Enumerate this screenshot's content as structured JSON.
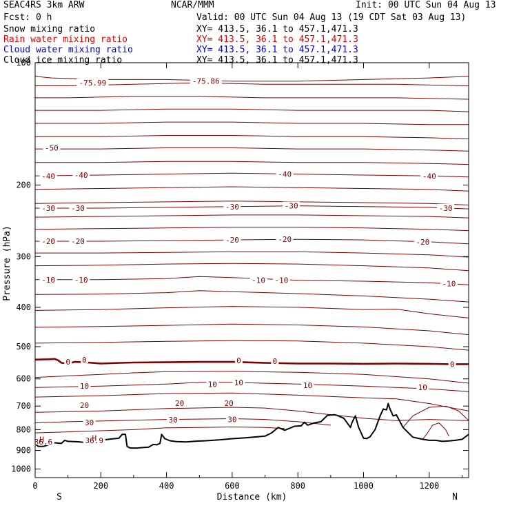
{
  "header": {
    "model": "SEAC4RS  3km ARW",
    "org": "NCAR/MMM",
    "init": "Init: 00 UTC Sun 04 Aug 13",
    "fcst": "Fcst:   0 h",
    "valid": "Valid: 00 UTC Sun 04 Aug 13 (19 CDT Sat 03 Aug 13)"
  },
  "fields": [
    {
      "label": "Snow mixing ratio",
      "xy": "XY= 413.5, 36.1 to 457.1,471.3",
      "color": "#000000"
    },
    {
      "label": "Rain water mixing ratio",
      "xy": "XY= 413.5, 36.1 to 457.1,471.3",
      "color": "#e00000"
    },
    {
      "label": "Cloud water mixing ratio",
      "xy": "XY= 413.5, 36.1 to 457.1,471.3",
      "color": "#0000dd"
    },
    {
      "label": "Cloud ice mixing ratio",
      "xy": "XY= 413.5, 36.1 to 457.1,471.3",
      "color": "#000000"
    }
  ],
  "chart_data": {
    "type": "line",
    "xlabel": "Distance (km)",
    "ylabel": "Pressure (hPa)",
    "xlim": [
      0,
      1320
    ],
    "ylim": [
      100,
      1050
    ],
    "y_scale": "log",
    "x_ticks": [
      0,
      200,
      400,
      600,
      800,
      1000,
      1200
    ],
    "y_ticks": [
      200,
      300,
      400,
      500,
      600,
      700,
      800,
      900,
      1000
    ],
    "y_top_tick_label": "100",
    "left_end_label": "S",
    "right_end_label": "N",
    "contour_color": "#800000",
    "terrain_color": "#000000",
    "contour_labels": [
      {
        "text": "-75.99",
        "x": 175,
        "p": 112
      },
      {
        "text": "-75.86",
        "x": 520,
        "p": 111
      },
      {
        "text": "-50",
        "x": 50,
        "p": 162
      },
      {
        "text": "-40",
        "x": 40,
        "p": 190
      },
      {
        "text": "-40",
        "x": 140,
        "p": 189
      },
      {
        "text": "-40",
        "x": 760,
        "p": 188
      },
      {
        "text": "-40",
        "x": 1200,
        "p": 190
      },
      {
        "text": "-30",
        "x": 40,
        "p": 228
      },
      {
        "text": "-30",
        "x": 130,
        "p": 228
      },
      {
        "text": "-30",
        "x": 600,
        "p": 226
      },
      {
        "text": "-30",
        "x": 780,
        "p": 225
      },
      {
        "text": "-30",
        "x": 1250,
        "p": 228
      },
      {
        "text": "-20",
        "x": 40,
        "p": 275
      },
      {
        "text": "-20",
        "x": 130,
        "p": 275
      },
      {
        "text": "-20",
        "x": 600,
        "p": 273
      },
      {
        "text": "-20",
        "x": 760,
        "p": 272
      },
      {
        "text": "-20",
        "x": 1180,
        "p": 276
      },
      {
        "text": "-10",
        "x": 40,
        "p": 342
      },
      {
        "text": "-10",
        "x": 140,
        "p": 342
      },
      {
        "text": "-10",
        "x": 680,
        "p": 343
      },
      {
        "text": "-10",
        "x": 750,
        "p": 343
      },
      {
        "text": "-10",
        "x": 1260,
        "p": 350
      },
      {
        "text": "0",
        "x": 100,
        "p": 545
      },
      {
        "text": "0",
        "x": 150,
        "p": 538
      },
      {
        "text": "0",
        "x": 620,
        "p": 540
      },
      {
        "text": "0",
        "x": 730,
        "p": 543
      },
      {
        "text": "0",
        "x": 1270,
        "p": 552
      },
      {
        "text": "10",
        "x": 150,
        "p": 625
      },
      {
        "text": "10",
        "x": 540,
        "p": 618
      },
      {
        "text": "10",
        "x": 620,
        "p": 613
      },
      {
        "text": "10",
        "x": 830,
        "p": 622
      },
      {
        "text": "10",
        "x": 1180,
        "p": 630
      },
      {
        "text": "20",
        "x": 150,
        "p": 697
      },
      {
        "text": "20",
        "x": 440,
        "p": 688
      },
      {
        "text": "20",
        "x": 590,
        "p": 688
      },
      {
        "text": "30",
        "x": 165,
        "p": 768
      },
      {
        "text": "30",
        "x": 420,
        "p": 757
      },
      {
        "text": "30",
        "x": 600,
        "p": 755
      },
      {
        "text": "36.6",
        "x": 25,
        "p": 857
      },
      {
        "text": "36.9",
        "x": 180,
        "p": 851
      }
    ],
    "extrema_labels": [
      {
        "text": "H",
        "x": 20,
        "p": 846
      },
      {
        "text": "H",
        "x": 180,
        "p": 839
      }
    ],
    "series": [
      {
        "name": "",
        "kind": "isotherm",
        "x": [
          0,
          50,
          200,
          400,
          600,
          800,
          1000,
          1200,
          1320
        ],
        "p": [
          108,
          109,
          110,
          110,
          111,
          111,
          110,
          109,
          108
        ]
      },
      {
        "name": "",
        "kind": "isotherm",
        "x": [
          0,
          100,
          300,
          500,
          700,
          900,
          1100,
          1320
        ],
        "p": [
          114,
          114,
          113,
          112,
          113,
          113,
          113,
          114
        ]
      },
      {
        "name": "",
        "kind": "isotherm",
        "x": [
          0,
          100,
          300,
          500,
          700,
          900,
          1100,
          1320
        ],
        "p": [
          122,
          122,
          121,
          121,
          122,
          122,
          122,
          123
        ]
      },
      {
        "name": "",
        "kind": "isotherm",
        "x": [
          0,
          200,
          400,
          600,
          800,
          1000,
          1200,
          1320
        ],
        "p": [
          131,
          131,
          130,
          130,
          131,
          131,
          131,
          132
        ]
      },
      {
        "name": "",
        "kind": "isotherm",
        "x": [
          0,
          200,
          400,
          600,
          800,
          1000,
          1200,
          1320
        ],
        "p": [
          141,
          141,
          140,
          140,
          141,
          141,
          142,
          142
        ]
      },
      {
        "name": "",
        "kind": "isotherm",
        "x": [
          0,
          200,
          400,
          600,
          800,
          1000,
          1200,
          1320
        ],
        "p": [
          152,
          152,
          151,
          151,
          152,
          152,
          153,
          154
        ]
      },
      {
        "name": "",
        "kind": "isotherm",
        "x": [
          0,
          200,
          400,
          600,
          800,
          1000,
          1200,
          1320
        ],
        "p": [
          163,
          163,
          162,
          162,
          163,
          163,
          164,
          165
        ]
      },
      {
        "name": "",
        "kind": "isotherm",
        "x": [
          0,
          200,
          400,
          600,
          800,
          1000,
          1200,
          1320
        ],
        "p": [
          176,
          176,
          175,
          175,
          176,
          176,
          177,
          178
        ]
      },
      {
        "name": "",
        "kind": "isotherm",
        "x": [
          0,
          200,
          400,
          600,
          800,
          1000,
          1200,
          1320
        ],
        "p": [
          190,
          189,
          188,
          187,
          188,
          189,
          190,
          191
        ]
      },
      {
        "name": "",
        "kind": "isotherm",
        "x": [
          0,
          200,
          400,
          600,
          800,
          1000,
          1200,
          1320
        ],
        "p": [
          205,
          204,
          203,
          202,
          203,
          204,
          205,
          207
        ]
      },
      {
        "name": "",
        "kind": "isotherm",
        "x": [
          0,
          200,
          400,
          600,
          800,
          1000,
          1200,
          1320
        ],
        "p": [
          222,
          221,
          220,
          219,
          220,
          221,
          222,
          224
        ]
      },
      {
        "name": "",
        "kind": "isotherm",
        "x": [
          0,
          200,
          400,
          600,
          800,
          1000,
          1200,
          1320
        ],
        "p": [
          228,
          228,
          227,
          226,
          225,
          226,
          227,
          229
        ]
      },
      {
        "name": "",
        "kind": "isotherm",
        "x": [
          0,
          200,
          400,
          600,
          800,
          1000,
          1200,
          1320
        ],
        "p": [
          240,
          239,
          238,
          237,
          237,
          238,
          239,
          241
        ]
      },
      {
        "name": "",
        "kind": "isotherm",
        "x": [
          0,
          200,
          400,
          600,
          800,
          1000,
          1200,
          1320
        ],
        "p": [
          257,
          256,
          255,
          254,
          254,
          255,
          257,
          259
        ]
      },
      {
        "name": "",
        "kind": "isotherm",
        "x": [
          0,
          200,
          400,
          600,
          800,
          1000,
          1200,
          1320
        ],
        "p": [
          275,
          275,
          274,
          273,
          272,
          273,
          276,
          279
        ]
      },
      {
        "name": "",
        "kind": "isotherm",
        "x": [
          0,
          200,
          400,
          600,
          800,
          1000,
          1200,
          1320
        ],
        "p": [
          294,
          294,
          293,
          292,
          292,
          294,
          297,
          301
        ]
      },
      {
        "name": "",
        "kind": "isotherm",
        "x": [
          0,
          200,
          400,
          600,
          800,
          1000,
          1200,
          1320
        ],
        "p": [
          316,
          315,
          313,
          312,
          313,
          316,
          320,
          325
        ]
      },
      {
        "name": "",
        "kind": "isotherm",
        "x": [
          0,
          200,
          400,
          500,
          600,
          800,
          1000,
          1200,
          1320
        ],
        "p": [
          342,
          342,
          340,
          336,
          338,
          343,
          345,
          348,
          352
        ]
      },
      {
        "name": "",
        "kind": "isotherm",
        "x": [
          0,
          200,
          400,
          500,
          600,
          800,
          1000,
          1200,
          1320
        ],
        "p": [
          372,
          371,
          368,
          364,
          366,
          370,
          375,
          382,
          388
        ]
      },
      {
        "name": "",
        "kind": "isotherm",
        "x": [
          0,
          200,
          400,
          600,
          800,
          1000,
          1100,
          1200,
          1320
        ],
        "p": [
          407,
          405,
          401,
          398,
          400,
          405,
          404,
          415,
          425
        ]
      },
      {
        "name": "",
        "kind": "isotherm",
        "x": [
          0,
          200,
          400,
          600,
          800,
          1000,
          1200,
          1320
        ],
        "p": [
          448,
          446,
          443,
          440,
          442,
          447,
          457,
          467
        ]
      },
      {
        "name": "",
        "kind": "isotherm",
        "x": [
          0,
          200,
          400,
          600,
          800,
          1000,
          1200,
          1320
        ],
        "p": [
          490,
          488,
          485,
          483,
          484,
          490,
          500,
          510
        ]
      },
      {
        "name": "",
        "kind": "isotherm",
        "x": [
          0,
          100,
          200,
          300,
          400,
          600,
          800,
          1000,
          1200,
          1320
        ],
        "p": [
          595,
          590,
          585,
          580,
          576,
          575,
          578,
          585,
          600,
          615
        ]
      },
      {
        "name": "",
        "kind": "isotherm",
        "x": [
          0,
          200,
          400,
          500,
          600,
          800,
          1000,
          1200,
          1320
        ],
        "p": [
          630,
          625,
          618,
          612,
          612,
          618,
          625,
          635,
          645
        ]
      },
      {
        "name": "",
        "kind": "isotherm",
        "x": [
          0,
          200,
          400,
          600,
          800,
          1000,
          1100,
          1200,
          1320
        ],
        "p": [
          665,
          660,
          652,
          650,
          658,
          668,
          672,
          690,
          720
        ]
      },
      {
        "name": "",
        "kind": "isotherm",
        "x": [
          0,
          200,
          400,
          600,
          700,
          800,
          900,
          1000,
          1100,
          1200,
          1320
        ],
        "p": [
          725,
          720,
          710,
          705,
          708,
          720,
          735,
          750,
          760,
          755,
          760
        ]
      },
      {
        "name": "",
        "kind": "isotherm",
        "x": [
          0,
          100,
          200,
          400,
          600,
          700,
          800,
          900
        ],
        "p": [
          770,
          765,
          762,
          755,
          752,
          755,
          765,
          780
        ]
      },
      {
        "name": "",
        "kind": "isotherm",
        "x": [
          0,
          100,
          200,
          300,
          400,
          500,
          600,
          700,
          760
        ],
        "p": [
          815,
          810,
          805,
          800,
          792,
          790,
          788,
          790,
          795
        ]
      },
      {
        "name": "",
        "kind": "isotherm",
        "x": [
          1120,
          1150,
          1200,
          1250,
          1290,
          1320
        ],
        "p": [
          790,
          740,
          705,
          700,
          720,
          760
        ]
      },
      {
        "name": "",
        "kind": "isotherm",
        "x": [
          1180,
          1195,
          1210,
          1230,
          1250,
          1260
        ],
        "p": [
          845,
          815,
          780,
          770,
          800,
          830
        ]
      },
      {
        "name": "",
        "kind": "freezing_level",
        "x": [
          0,
          40,
          60,
          70,
          80,
          100,
          120,
          150,
          200,
          260,
          300,
          400,
          500,
          600,
          700,
          800,
          900,
          1000,
          1100,
          1200,
          1260,
          1320
        ],
        "p": [
          538,
          537,
          536,
          540,
          548,
          550,
          545,
          546,
          550,
          548,
          547,
          546,
          545,
          545,
          548,
          550,
          550,
          551,
          550,
          551,
          552,
          552
        ]
      },
      {
        "name": "",
        "kind": "terrain",
        "x": [
          0,
          10,
          25,
          35,
          45,
          60,
          80,
          90,
          100,
          130,
          150,
          175,
          195,
          210,
          235,
          255,
          265,
          275,
          280,
          290,
          310,
          330,
          345,
          360,
          370,
          380,
          385,
          395,
          410,
          430,
          460,
          490,
          520,
          560,
          600,
          640,
          700,
          720,
          740,
          760,
          790,
          810,
          820,
          830,
          850,
          870,
          890,
          910,
          920,
          940,
          960,
          965,
          975,
          985,
          1000,
          1010,
          1020,
          1035,
          1050,
          1060,
          1070,
          1075,
          1080,
          1090,
          1100,
          1120,
          1150,
          1180,
          1200,
          1220,
          1240,
          1260,
          1280,
          1300,
          1320
        ],
        "p": [
          868,
          880,
          880,
          875,
          868,
          862,
          865,
          850,
          855,
          857,
          860,
          847,
          852,
          848,
          843,
          840,
          822,
          822,
          880,
          888,
          888,
          885,
          884,
          870,
          872,
          865,
          822,
          842,
          852,
          856,
          858,
          854,
          852,
          848,
          842,
          838,
          830,
          815,
          790,
          803,
          785,
          783,
          767,
          780,
          770,
          765,
          738,
          735,
          738,
          750,
          790,
          768,
          740,
          790,
          840,
          841,
          833,
          800,
          742,
          712,
          715,
          690,
          710,
          740,
          736,
          790,
          835,
          845,
          850,
          850,
          855,
          853,
          850,
          845,
          822
        ]
      }
    ]
  }
}
